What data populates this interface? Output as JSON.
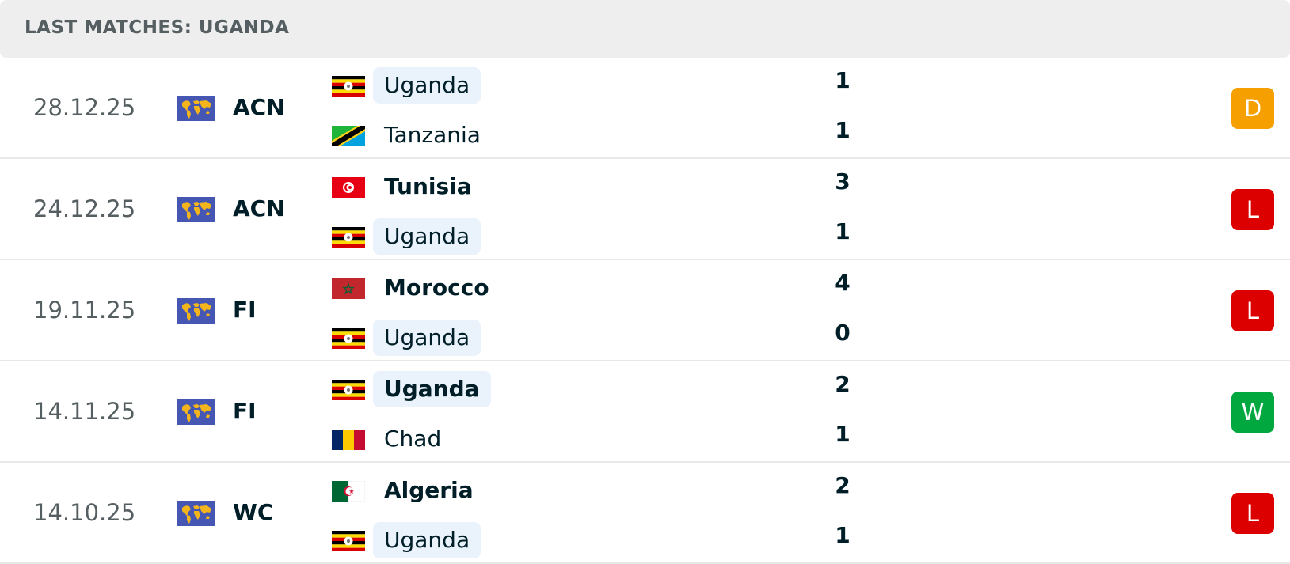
{
  "header": {
    "title": "LAST MATCHES: UGANDA"
  },
  "matches": [
    {
      "date": "28.12.25",
      "competition": "ACN",
      "home": {
        "name": "Uganda",
        "score": 1,
        "highlight": true
      },
      "away": {
        "name": "Tanzania",
        "score": 1,
        "highlight": false
      },
      "result": "D",
      "result_color": "#f5a000"
    },
    {
      "date": "24.12.25",
      "competition": "ACN",
      "home": {
        "name": "Tunisia",
        "score": 3,
        "highlight": false
      },
      "away": {
        "name": "Uganda",
        "score": 1,
        "highlight": true
      },
      "result": "L",
      "result_color": "#dc0000"
    },
    {
      "date": "19.11.25",
      "competition": "FI",
      "home": {
        "name": "Morocco",
        "score": 4,
        "highlight": false
      },
      "away": {
        "name": "Uganda",
        "score": 0,
        "highlight": true
      },
      "result": "L",
      "result_color": "#dc0000"
    },
    {
      "date": "14.11.25",
      "competition": "FI",
      "home": {
        "name": "Uganda",
        "score": 2,
        "highlight": true
      },
      "away": {
        "name": "Chad",
        "score": 1,
        "highlight": false
      },
      "result": "W",
      "result_color": "#00a83f"
    },
    {
      "date": "14.10.25",
      "competition": "WC",
      "home": {
        "name": "Algeria",
        "score": 2,
        "highlight": false
      },
      "away": {
        "name": "Uganda",
        "score": 1,
        "highlight": true
      },
      "result": "L",
      "result_color": "#dc0000"
    }
  ]
}
